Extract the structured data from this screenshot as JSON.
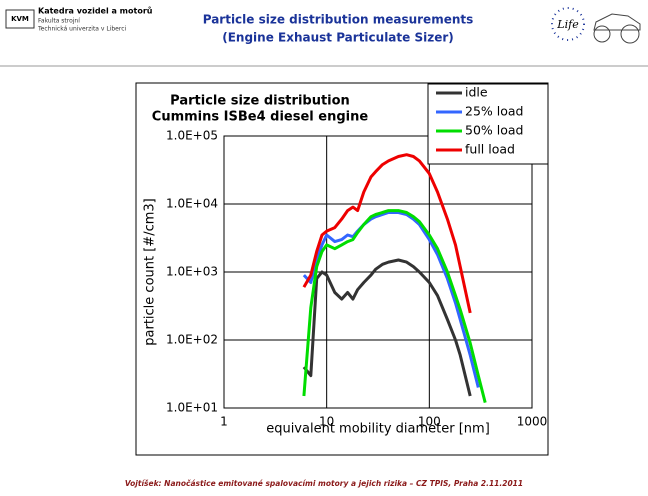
{
  "header": {
    "logo": "KVM",
    "department": "Katedra vozidel a motorů",
    "faculty": "Fakulta strojní",
    "university": "Technická univerzita v Liberci",
    "title": [
      "Particle size distribution measurements",
      "(Engine Exhaust Particulate Sizer)"
    ],
    "logo_right": "Life"
  },
  "chart_data": {
    "type": "line",
    "title": [
      "Particle size distribution",
      "Cummins ISBe4 diesel engine"
    ],
    "x_label": "equivalent mobility diameter [nm]",
    "y_label": "particle count [#/cm3]",
    "x": [
      6,
      7,
      8,
      9,
      10,
      12,
      14,
      16,
      18,
      20,
      23,
      27,
      30,
      35,
      40,
      50,
      60,
      70,
      80,
      100,
      120,
      150,
      180,
      200,
      250,
      300,
      350
    ],
    "series": [
      {
        "name": "idle",
        "color": "#333333",
        "values": [
          40,
          30,
          800,
          1000,
          900,
          500,
          400,
          500,
          400,
          550,
          700,
          900,
          1100,
          1300,
          1400,
          1500,
          1400,
          1200,
          1000,
          700,
          450,
          200,
          100,
          60,
          15,
          null,
          null
        ]
      },
      {
        "name": "25% load",
        "color": "#3366ff",
        "values": [
          900,
          700,
          1500,
          2500,
          3500,
          2800,
          3000,
          3500,
          3300,
          4000,
          5000,
          6000,
          6500,
          7000,
          7500,
          7500,
          7000,
          6000,
          5000,
          3000,
          1800,
          800,
          350,
          200,
          60,
          20,
          null
        ]
      },
      {
        "name": "50% load",
        "color": "#00dd00",
        "values": [
          15,
          300,
          1200,
          2000,
          2500,
          2200,
          2500,
          2800,
          3000,
          3800,
          5000,
          6500,
          7000,
          7500,
          8000,
          8000,
          7500,
          6500,
          5500,
          3500,
          2200,
          1000,
          450,
          280,
          90,
          30,
          12
        ]
      },
      {
        "name": "full load",
        "color": "#ee0000",
        "values": [
          600,
          900,
          2000,
          3500,
          4000,
          4500,
          6000,
          8000,
          9000,
          8000,
          15000,
          25000,
          30000,
          38000,
          43000,
          50000,
          53000,
          50000,
          43000,
          28000,
          15000,
          6000,
          2500,
          1200,
          250,
          null,
          null
        ]
      }
    ],
    "xlim": [
      1,
      1000
    ],
    "ylim": [
      10,
      100000
    ],
    "xticks": [
      1,
      10,
      100,
      1000
    ],
    "yticks": [
      {
        "value": 10,
        "label": "1.0E+01"
      },
      {
        "value": 100,
        "label": "1.0E+02"
      },
      {
        "value": 1000,
        "label": "1.0E+03"
      },
      {
        "value": 10000,
        "label": "1.0E+04"
      },
      {
        "value": 100000,
        "label": "1.0E+05"
      }
    ],
    "log_x": true,
    "log_y": true,
    "grid": true,
    "legend": "upper right"
  },
  "footer": "Vojtíšek: Nanočástice emitované spalovacími motory a jejich rizika – CZ TPIS, Praha 2.11.2011"
}
